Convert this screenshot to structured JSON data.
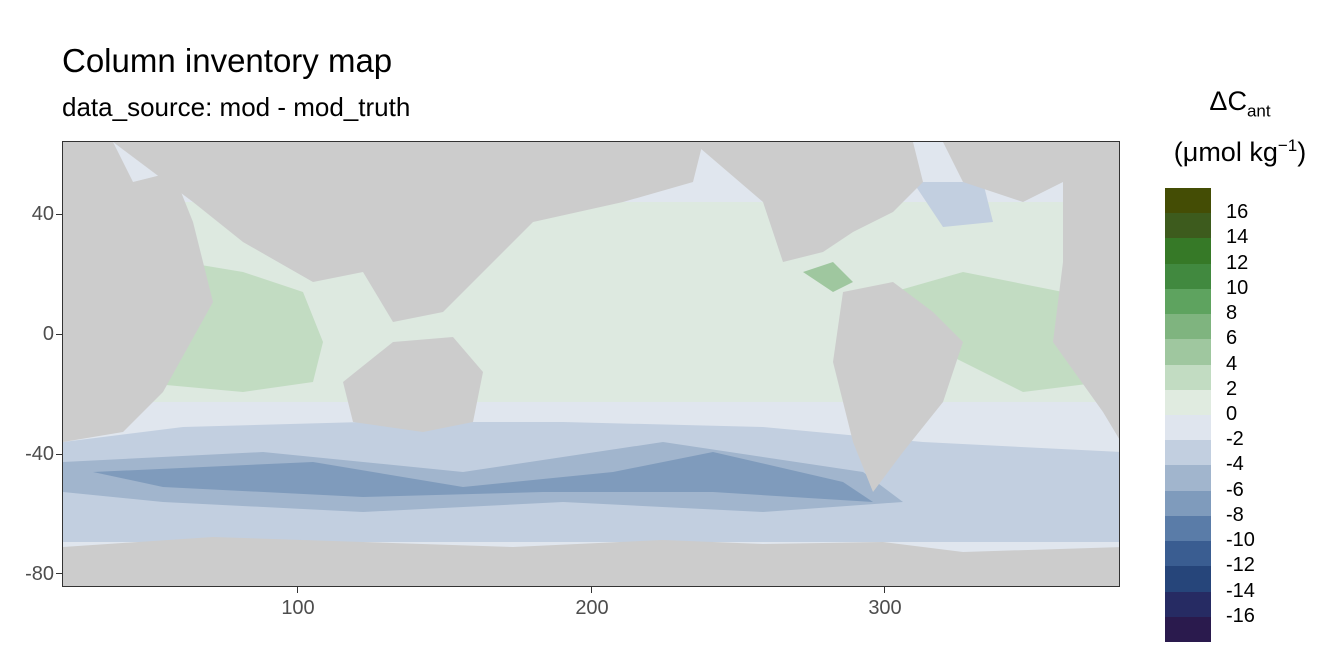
{
  "title": "Column inventory map",
  "subtitle": "data_source: mod - mod_truth",
  "legend": {
    "title_main": "ΔC",
    "title_sub": "ant",
    "unit_prefix": "(μmol kg",
    "unit_sup": "−1",
    "unit_suffix": ")",
    "breaks": [
      "16",
      "14",
      "12",
      "10",
      "8",
      "6",
      "4",
      "2",
      "0",
      "-2",
      "-4",
      "-6",
      "-8",
      "-10",
      "-12",
      "-14",
      "-16"
    ],
    "colors": [
      "#444d05",
      "#3d5b1d",
      "#367927",
      "#41893f",
      "#5ea35f",
      "#7fb47f",
      "#9fc79f",
      "#c2dcc2",
      "#e0ebe0",
      "#dfe5ee",
      "#c2cfe0",
      "#a1b5cd",
      "#7f9bbc",
      "#5a7ca8",
      "#3a5d91",
      "#26457a",
      "#262b63",
      "#2a1a4d"
    ]
  },
  "map": {
    "axes": {
      "y_ticks": [
        "40",
        "0",
        "-40",
        "-80"
      ],
      "x_ticks": [
        "100",
        "200",
        "300"
      ]
    },
    "colors": {
      "land": "#cccccc",
      "missing": "#ffffff",
      "near_zero": "#e0e6ee",
      "pos2": "#c2dcc2",
      "pos4": "#9fc79f",
      "pos6": "#7fb47f",
      "neg2": "#c2cfe0",
      "neg4": "#a1b5cd",
      "neg6": "#7f9bbc"
    }
  }
}
